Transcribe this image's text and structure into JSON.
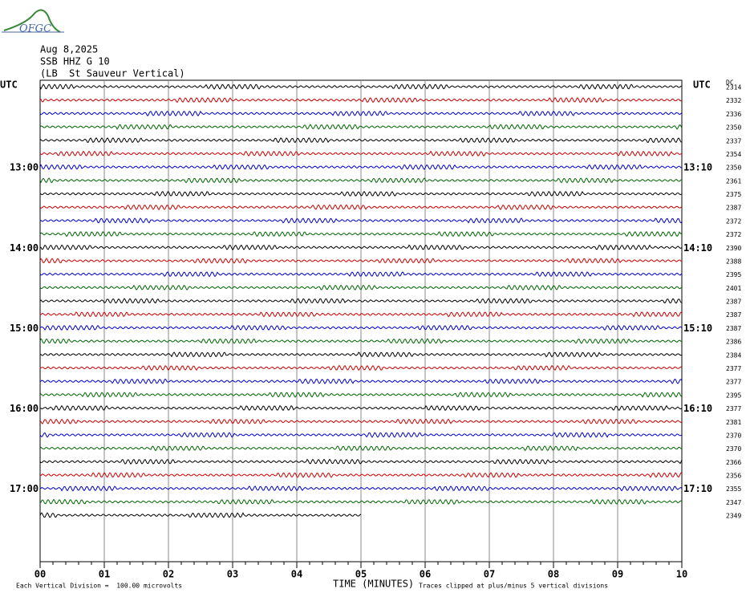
{
  "logo": "OFGC",
  "header": [
    "Aug 8,2025",
    "SSB HHZ G 10",
    "(LB  St Sauveur Vertical)"
  ],
  "left_labels": [
    "UTC",
    "13:00",
    "14:00",
    "15:00",
    "16:00",
    "17:00"
  ],
  "right_labels": [
    "UTC",
    "13:10",
    "14:10",
    "15:10",
    "16:10",
    "17:10"
  ],
  "dc_label": "DC",
  "dc_values": [
    "2314",
    "2332",
    "2336",
    "2350",
    "2337",
    "2354",
    "2350",
    "2361",
    "2375",
    "2387",
    "2372",
    "2372",
    "2390",
    "2388",
    "2395",
    "2401",
    "2387",
    "2387",
    "2387",
    "2386",
    "2384",
    "2377",
    "2377",
    "2395",
    "2377",
    "2381",
    "2370",
    "2370",
    "2366",
    "2356",
    "2355",
    "2347",
    "2349"
  ],
  "x_ticks": [
    "00",
    "01",
    "02",
    "03",
    "04",
    "05",
    "06",
    "07",
    "08",
    "09",
    "10"
  ],
  "x_axis_label": "TIME (MINUTES)",
  "footer_left": "Each Vertical Division =  100.00 microvolts",
  "footer_right": "Traces clipped at plus/minus 5 vertical divisions"
}
